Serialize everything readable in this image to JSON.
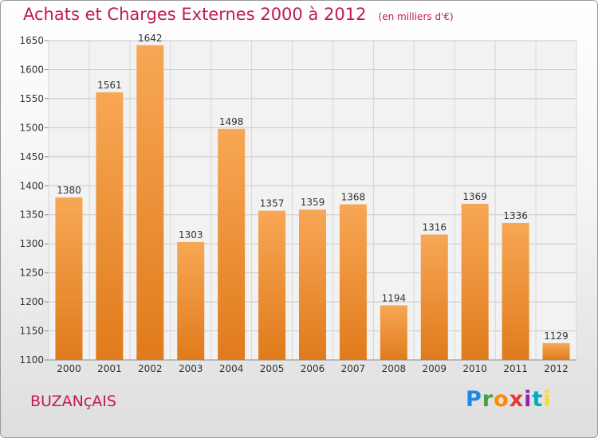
{
  "header": {
    "title": "Achats et Charges Externes 2000 à 2012",
    "unit": "(en milliers d'€)"
  },
  "footer": {
    "city": "BUZANçAIS",
    "logo_letters": [
      "P",
      "r",
      "o",
      "x",
      "i",
      "t",
      "i"
    ],
    "logo_colors": [
      "#1e88e5",
      "#43a047",
      "#fb8c00",
      "#e53935",
      "#8e24aa",
      "#00acc1",
      "#fdd835"
    ]
  },
  "colors": {
    "bar_top": "#f7a755",
    "bar_bottom": "#e07b1c",
    "title": "#c2185b"
  },
  "chart_data": {
    "type": "bar",
    "categories": [
      "2000",
      "2001",
      "2002",
      "2003",
      "2004",
      "2005",
      "2006",
      "2007",
      "2008",
      "2009",
      "2010",
      "2011",
      "2012"
    ],
    "values": [
      1380,
      1561,
      1642,
      1303,
      1498,
      1357,
      1359,
      1368,
      1194,
      1316,
      1369,
      1336,
      1129
    ],
    "ylim": [
      1100,
      1650
    ],
    "yticks": [
      1100,
      1150,
      1200,
      1250,
      1300,
      1350,
      1400,
      1450,
      1500,
      1550,
      1600,
      1650
    ],
    "grid": true
  }
}
